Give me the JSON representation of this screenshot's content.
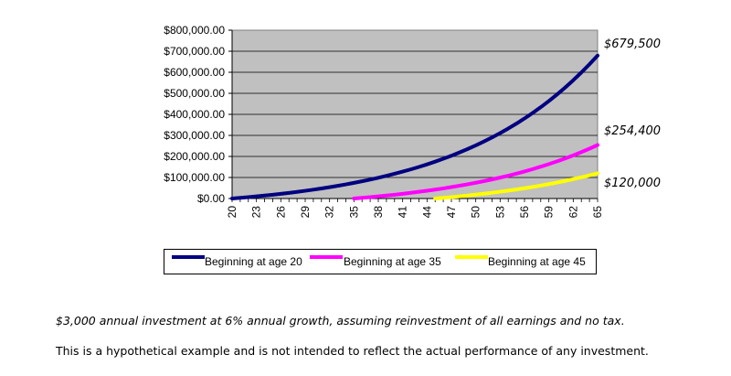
{
  "chart_data": {
    "type": "line",
    "x": [
      20,
      21,
      22,
      23,
      24,
      25,
      26,
      27,
      28,
      29,
      30,
      31,
      32,
      33,
      34,
      35,
      36,
      37,
      38,
      39,
      40,
      41,
      42,
      43,
      44,
      45,
      46,
      47,
      48,
      49,
      50,
      51,
      52,
      53,
      54,
      55,
      56,
      57,
      58,
      59,
      60,
      61,
      62,
      63,
      64,
      65
    ],
    "x_tick_labels": [
      "20",
      "23",
      "26",
      "29",
      "32",
      "35",
      "38",
      "41",
      "44",
      "47",
      "50",
      "53",
      "56",
      "59",
      "62",
      "65"
    ],
    "y_tick_labels": [
      "$800,000.00",
      "$700,000.00",
      "$600,000.00",
      "$500,000.00",
      "$400,000.00",
      "$300,000.00",
      "$200,000.00",
      "$100,000.00",
      "$0.00"
    ],
    "ylim": [
      0,
      800000
    ],
    "xlim": [
      20,
      65
    ],
    "grid": true,
    "plot_background": "#c0c0c0",
    "legend_position": "bottom",
    "series": [
      {
        "name": "Beginning at age 20",
        "start_age": 20,
        "color": "#000080",
        "end_label": "$679,500",
        "end_value": 679500
      },
      {
        "name": "Beginning at age 35",
        "start_age": 35,
        "color": "#ff00ff",
        "end_label": "$254,400",
        "end_value": 254400
      },
      {
        "name": "Beginning at age 45",
        "start_age": 45,
        "color": "#ffff00",
        "end_label": "$120,000",
        "end_value": 120000
      }
    ]
  },
  "notes": {
    "assumptions": "$3,000 annual investment at 6% annual growth, assuming reinvestment of all earnings and no tax.",
    "disclaimer": "This is a hypothetical example and is not intended to reflect the actual performance of any investment."
  }
}
